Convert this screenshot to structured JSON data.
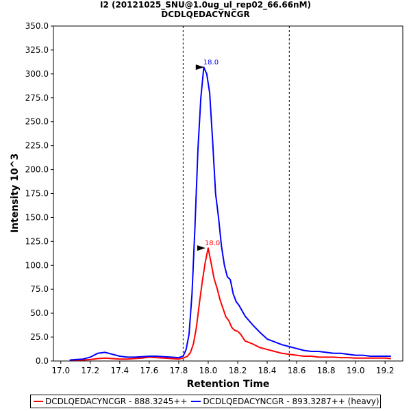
{
  "header": {
    "title": "I2 (20121025_SNU@1.0ug_ul_rep02_66.66nM)",
    "subtitle": "DCDLQEDACYNCGR"
  },
  "colors": {
    "light": "#ff0000",
    "heavy": "#0000ff"
  },
  "chart_data": {
    "type": "line",
    "xlabel": "Retention Time",
    "ylabel": "Intensity 10^3",
    "xlim": [
      16.95,
      19.32
    ],
    "ylim": [
      0,
      350
    ],
    "xticks": [
      "17.0",
      "17.2",
      "17.4",
      "17.6",
      "17.8",
      "18.0",
      "18.2",
      "18.4",
      "18.6",
      "18.8",
      "19.0",
      "19.2"
    ],
    "yticks": [
      "0.0",
      "25.0",
      "50.0",
      "75.0",
      "100.0",
      "125.0",
      "150.0",
      "175.0",
      "200.0",
      "225.0",
      "250.0",
      "275.0",
      "300.0",
      "325.0",
      "350.0"
    ],
    "vlines": [
      17.83,
      18.55
    ],
    "legend": "bottom",
    "series": [
      {
        "name": "DCDLQEDACYNCGR - 888.3245++",
        "color": "#ff0000",
        "x": [
          17.06,
          17.1,
          17.15,
          17.2,
          17.25,
          17.3,
          17.35,
          17.4,
          17.45,
          17.5,
          17.55,
          17.6,
          17.65,
          17.7,
          17.75,
          17.8,
          17.83,
          17.86,
          17.88,
          17.9,
          17.92,
          17.94,
          17.96,
          17.98,
          18.0,
          18.02,
          18.04,
          18.06,
          18.08,
          18.1,
          18.12,
          18.14,
          18.16,
          18.18,
          18.2,
          18.22,
          18.25,
          18.3,
          18.35,
          18.4,
          18.45,
          18.5,
          18.55,
          18.6,
          18.65,
          18.7,
          18.75,
          18.8,
          18.85,
          18.9,
          18.95,
          19.0,
          19.05,
          19.1,
          19.15,
          19.2,
          19.24
        ],
        "y": [
          1,
          1,
          1,
          1.5,
          2.5,
          3,
          2.5,
          2,
          2,
          2.5,
          3,
          4,
          3.5,
          3,
          2.5,
          2,
          3,
          5,
          9,
          18,
          35,
          60,
          83,
          103,
          118,
          102,
          86,
          76,
          64,
          55,
          46,
          42,
          35,
          32,
          31,
          28,
          21,
          18,
          14,
          12,
          10,
          8,
          7,
          6,
          5,
          5,
          4,
          4,
          4,
          3.5,
          3.5,
          3,
          3,
          3,
          3,
          3,
          2.5
        ]
      },
      {
        "name": "DCDLQEDACYNCGR - 893.3287++ (heavy)",
        "color": "#0000ff",
        "x": [
          17.06,
          17.1,
          17.15,
          17.2,
          17.25,
          17.3,
          17.35,
          17.4,
          17.45,
          17.5,
          17.55,
          17.6,
          17.65,
          17.7,
          17.75,
          17.8,
          17.83,
          17.85,
          17.87,
          17.89,
          17.91,
          17.93,
          17.95,
          17.97,
          17.99,
          18.01,
          18.03,
          18.05,
          18.07,
          18.09,
          18.11,
          18.13,
          18.15,
          18.17,
          18.19,
          18.21,
          18.25,
          18.3,
          18.35,
          18.4,
          18.45,
          18.5,
          18.55,
          18.6,
          18.65,
          18.7,
          18.75,
          18.8,
          18.85,
          18.9,
          18.95,
          19.0,
          19.05,
          19.1,
          19.15,
          19.2,
          19.24
        ],
        "y": [
          1,
          1.5,
          2,
          4,
          8,
          9,
          7,
          5,
          4,
          4,
          4.5,
          5,
          5,
          4.5,
          4,
          3.5,
          5,
          12,
          28,
          70,
          140,
          220,
          275,
          307,
          300,
          280,
          230,
          175,
          150,
          120,
          100,
          88,
          85,
          70,
          62,
          58,
          47,
          38,
          30,
          23,
          20,
          17,
          15,
          13,
          11,
          10,
          10,
          9,
          8,
          8,
          7,
          6,
          6,
          5,
          5,
          5,
          5
        ]
      }
    ],
    "peak_labels": [
      {
        "series": 1,
        "x": 17.99,
        "y": 307,
        "text": "18.0"
      },
      {
        "series": 0,
        "x": 18.0,
        "y": 118,
        "text": "18.0"
      }
    ]
  }
}
